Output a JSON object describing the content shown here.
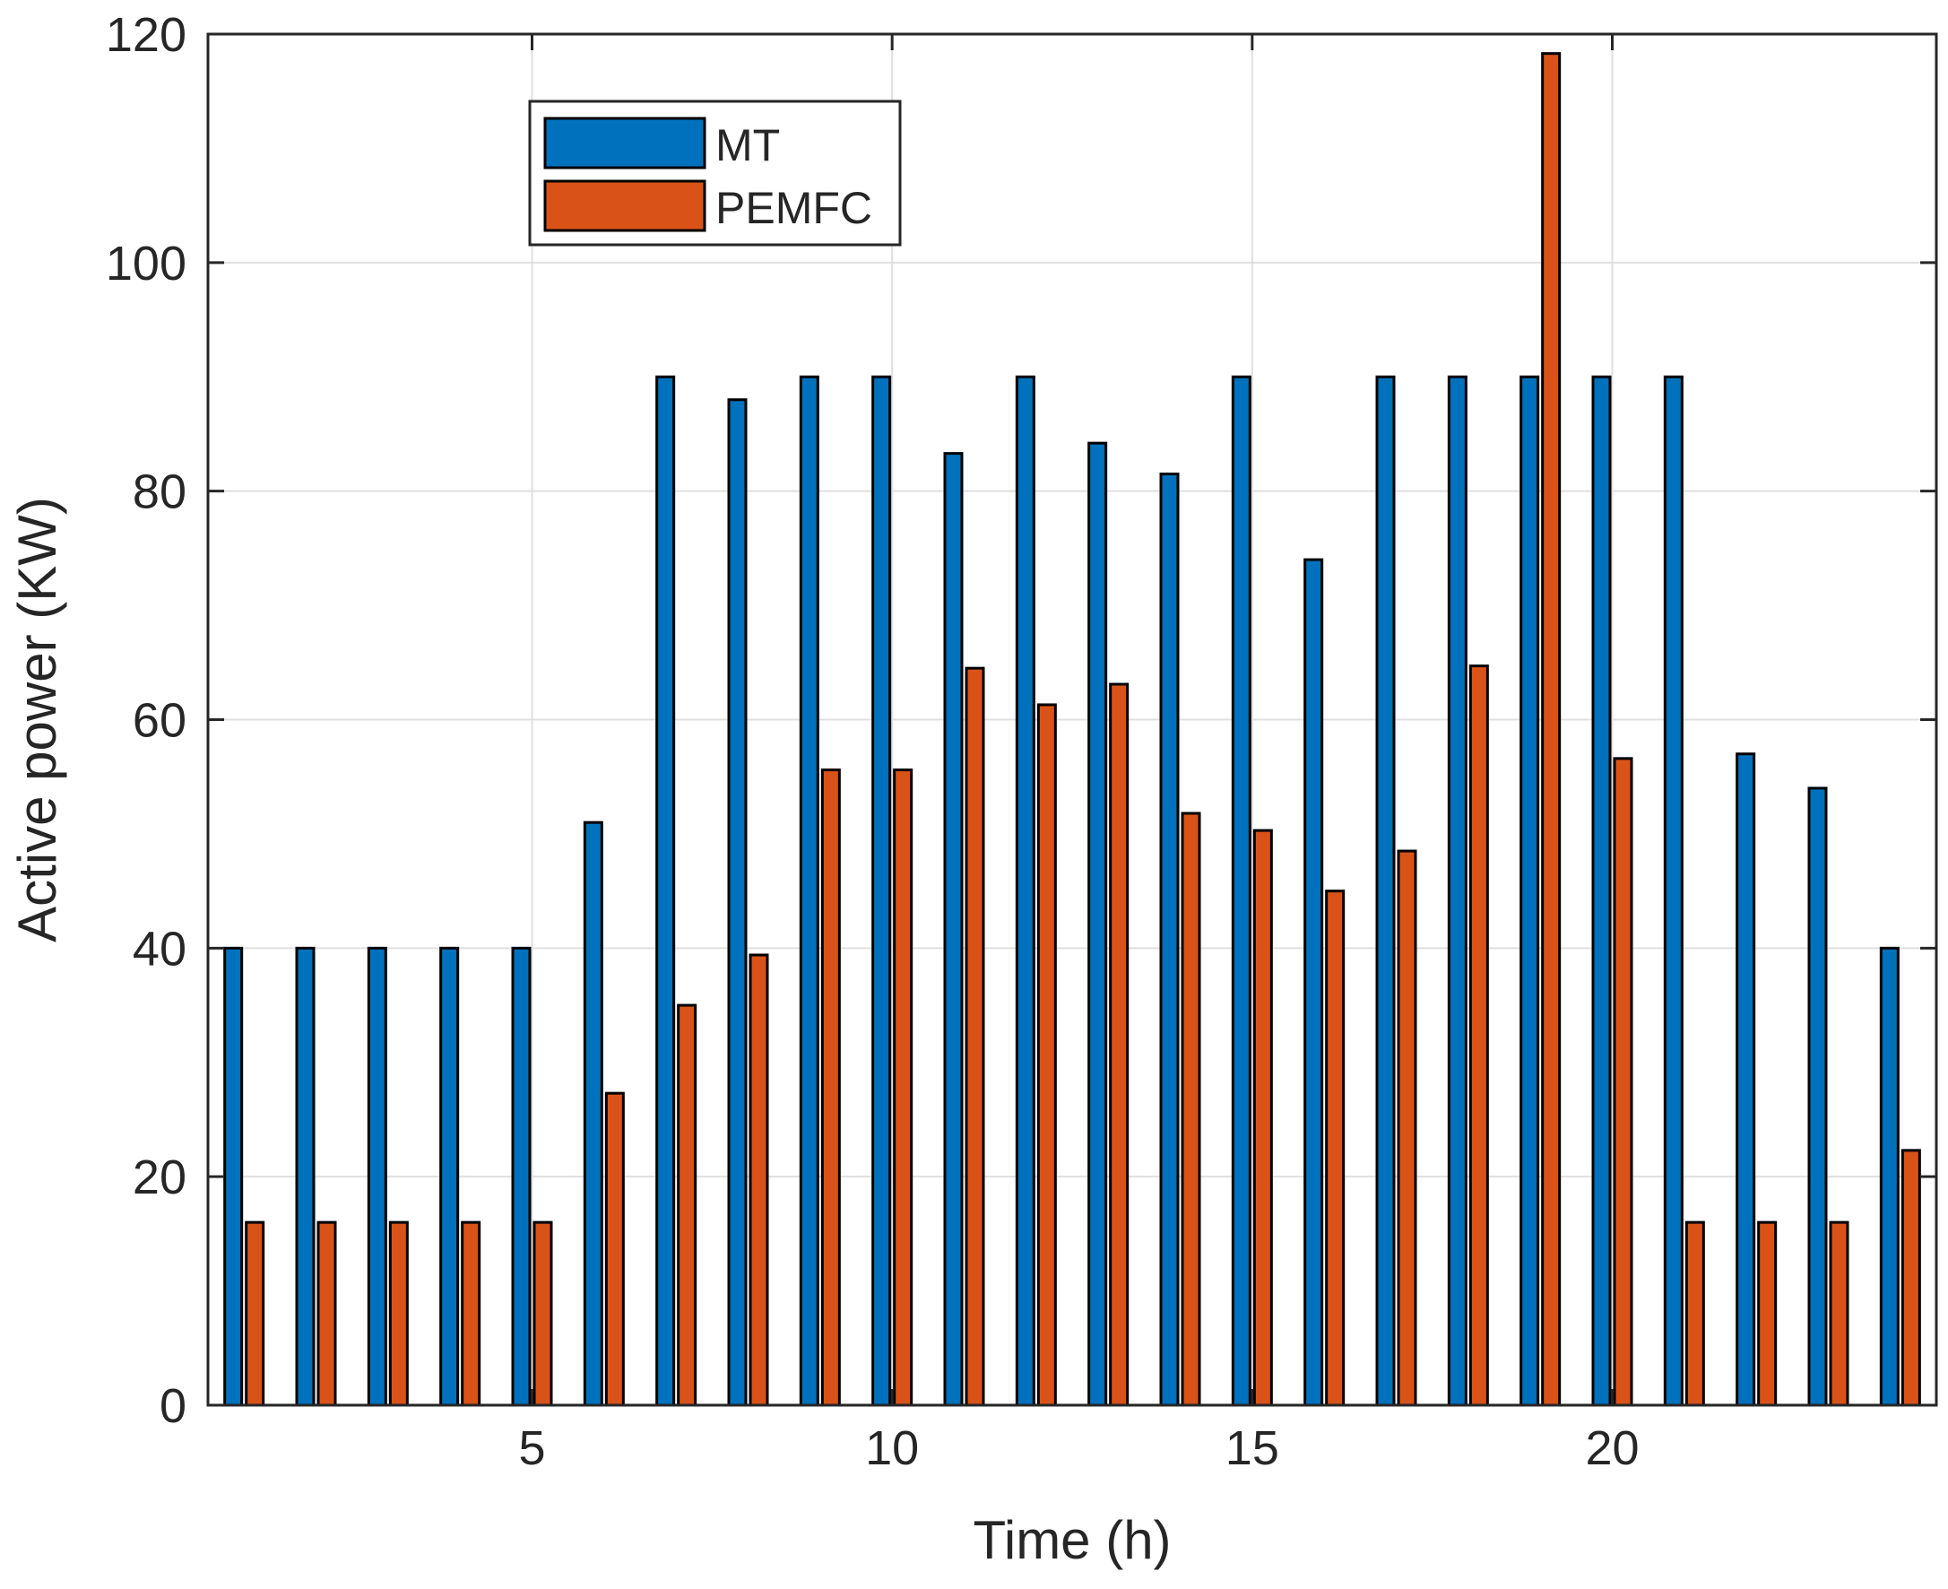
{
  "chart_data": {
    "type": "bar",
    "title": "",
    "xlabel": "Time (h)",
    "ylabel": "Active power (KW)",
    "xlim": [
      0.5,
      24.5
    ],
    "ylim": [
      0,
      120
    ],
    "xticks": [
      5,
      10,
      15,
      20
    ],
    "yticks": [
      0,
      20,
      40,
      60,
      80,
      100,
      120
    ],
    "grid": true,
    "legend_position": "top-left-center",
    "categories": [
      1,
      2,
      3,
      4,
      5,
      6,
      7,
      8,
      9,
      10,
      11,
      12,
      13,
      14,
      15,
      16,
      17,
      18,
      19,
      20,
      21,
      22,
      23,
      24
    ],
    "series": [
      {
        "name": "MT",
        "color": "#0072BD",
        "values": [
          40,
          40,
          40,
          40,
          40,
          51,
          90,
          88,
          90,
          90,
          83.3,
          90,
          84.2,
          81.5,
          90,
          74,
          90,
          90,
          90,
          90,
          90,
          57,
          54,
          40
        ]
      },
      {
        "name": "PEMFC",
        "color": "#D95319",
        "values": [
          16,
          16,
          16,
          16,
          16,
          27.3,
          35,
          39.4,
          55.6,
          55.6,
          64.5,
          61.3,
          63.1,
          51.8,
          50.3,
          45,
          48.5,
          64.7,
          118.3,
          56.6,
          16,
          16,
          16,
          22.3
        ]
      }
    ]
  }
}
